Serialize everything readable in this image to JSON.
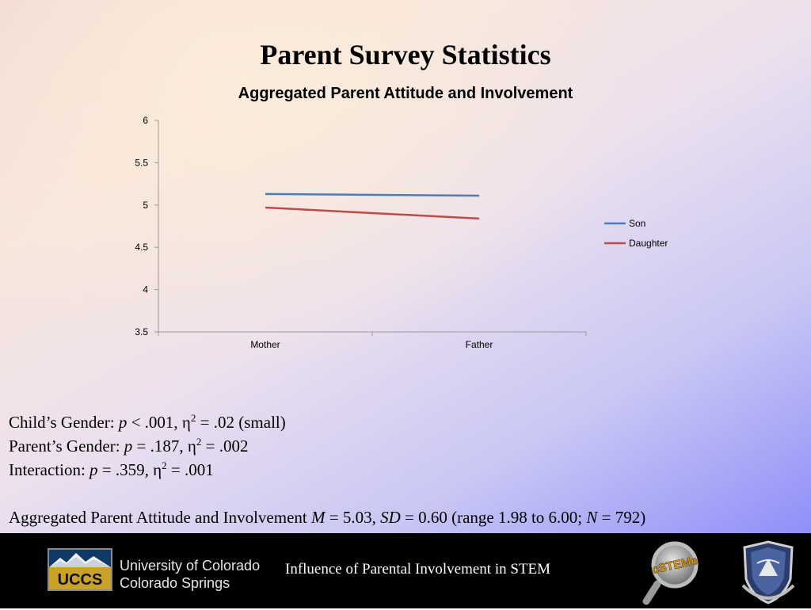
{
  "slide": {
    "title": "Parent Survey Statistics"
  },
  "chart_data": {
    "type": "line",
    "title": "Aggregated Parent Attitude and Involvement",
    "categories": [
      "Mother",
      "Father"
    ],
    "series": [
      {
        "name": "Son",
        "values": [
          5.13,
          5.11
        ],
        "color": "#4a7ebb"
      },
      {
        "name": "Daughter",
        "values": [
          4.97,
          4.84
        ],
        "color": "#be4b48"
      }
    ],
    "ylim": [
      3.5,
      6
    ],
    "yticks": [
      3.5,
      4,
      4.5,
      5,
      5.5,
      6
    ],
    "ytick_labels": [
      "3.5",
      "4",
      "4.5",
      "5",
      "5.5",
      "6"
    ],
    "grid": false,
    "legend_position": "right"
  },
  "stats": {
    "line1": {
      "prefix": "Child’s Gender: ",
      "p": "p",
      "mid": " < .001, η",
      "sup": "2",
      "suffix": " = .02 (small)"
    },
    "line2": {
      "prefix": "Parent’s Gender: ",
      "p": "p",
      "mid": " = .187, η",
      "sup": "2",
      "suffix": " = .002"
    },
    "line3": {
      "prefix": "Interaction: ",
      "p": "p",
      "mid": " = .359, η",
      "sup": "2",
      "suffix": " = .001"
    },
    "line4": {
      "prefix": "Aggregated Parent Attitude and Involvement ",
      "m": "M",
      "m_val": " = 5.03, ",
      "sd": "SD",
      "sd_val": " = 0.60 (range 1.98 to 6.00; ",
      "n": "N",
      "n_val": " = 792)"
    }
  },
  "footer": {
    "uccs_abbrev": "UCCS",
    "uccs_line1": "University of Colorado",
    "uccs_line2": "Colorado Springs",
    "center_text": "Influence of Parental Involvement in STEM",
    "cstem_text": "cSTEMe"
  }
}
